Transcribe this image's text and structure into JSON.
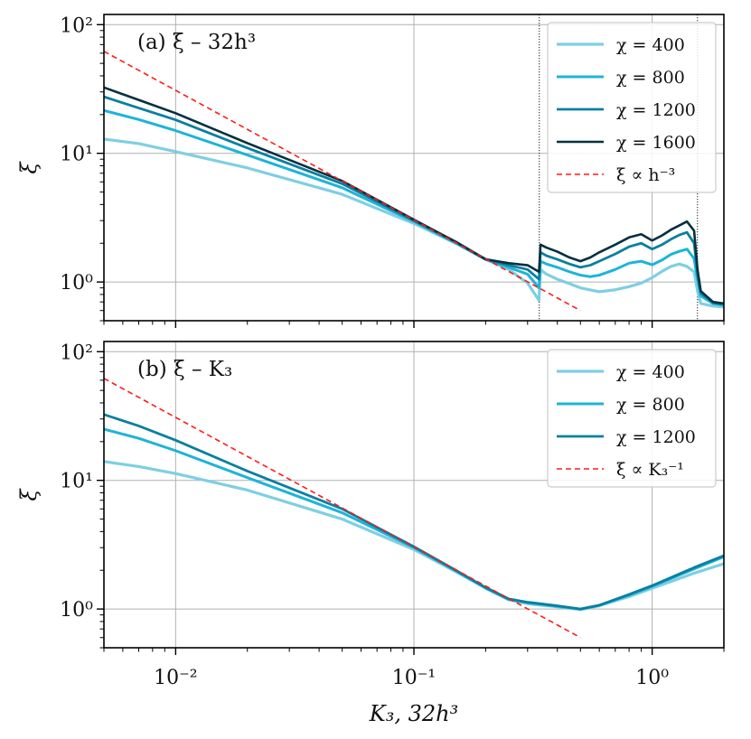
{
  "chart_data": [
    {
      "type": "line",
      "title": "(a) ξ – 32h³",
      "ylabel": "ξ",
      "xscale": "log",
      "yscale": "log",
      "xlim": [
        0.005,
        2.0
      ],
      "ylim": [
        0.5,
        120
      ],
      "grid": true,
      "legend": "top-right",
      "yticks": [
        {
          "value": 1,
          "label": "10⁰"
        },
        {
          "value": 10,
          "label": "10¹"
        },
        {
          "value": 100,
          "label": "10²"
        }
      ],
      "vlines": [
        0.336,
        1.55
      ],
      "series": [
        {
          "name": "χ = 400",
          "color": "#7ecfe3",
          "width": 3.2,
          "x": [
            0.005,
            0.007,
            0.01,
            0.02,
            0.05,
            0.1,
            0.15,
            0.2,
            0.25,
            0.3,
            0.335,
            0.34,
            0.36,
            0.4,
            0.45,
            0.5,
            0.6,
            0.7,
            0.8,
            0.9,
            1.0,
            1.1,
            1.2,
            1.3,
            1.4,
            1.5,
            1.55,
            1.6,
            1.8,
            2.0
          ],
          "y": [
            12.9,
            11.9,
            10.3,
            7.7,
            4.8,
            2.85,
            2.0,
            1.5,
            1.25,
            0.98,
            0.72,
            1.25,
            1.15,
            1.05,
            0.97,
            0.9,
            0.84,
            0.87,
            0.92,
            0.98,
            1.08,
            1.21,
            1.32,
            1.38,
            1.32,
            1.2,
            0.85,
            0.68,
            0.65,
            0.64
          ]
        },
        {
          "name": "χ = 800",
          "color": "#1db4d8",
          "width": 3.0,
          "x": [
            0.005,
            0.007,
            0.01,
            0.02,
            0.05,
            0.1,
            0.15,
            0.2,
            0.25,
            0.3,
            0.335,
            0.34,
            0.36,
            0.4,
            0.45,
            0.5,
            0.55,
            0.6,
            0.7,
            0.8,
            0.9,
            1.0,
            1.1,
            1.2,
            1.3,
            1.4,
            1.5,
            1.55,
            1.6,
            1.8,
            2.0
          ],
          "y": [
            21.5,
            18.3,
            15.0,
            9.7,
            5.4,
            2.95,
            2.0,
            1.5,
            1.3,
            1.15,
            0.9,
            1.45,
            1.38,
            1.3,
            1.2,
            1.13,
            1.1,
            1.13,
            1.25,
            1.4,
            1.45,
            1.36,
            1.48,
            1.64,
            1.73,
            1.8,
            1.52,
            1.05,
            0.78,
            0.68,
            0.66
          ]
        },
        {
          "name": "χ = 1200",
          "color": "#0a7fa0",
          "width": 2.8,
          "x": [
            0.005,
            0.007,
            0.01,
            0.02,
            0.05,
            0.1,
            0.15,
            0.2,
            0.25,
            0.3,
            0.335,
            0.34,
            0.36,
            0.4,
            0.45,
            0.5,
            0.55,
            0.6,
            0.7,
            0.8,
            0.9,
            1.0,
            1.1,
            1.2,
            1.3,
            1.4,
            1.5,
            1.55,
            1.6,
            1.8,
            2.0
          ],
          "y": [
            27.5,
            22.5,
            18.2,
            11.0,
            5.8,
            3.0,
            2.05,
            1.5,
            1.35,
            1.25,
            1.05,
            1.7,
            1.6,
            1.5,
            1.38,
            1.3,
            1.35,
            1.45,
            1.65,
            1.88,
            2.0,
            1.8,
            1.95,
            2.15,
            2.32,
            2.43,
            2.0,
            1.15,
            0.82,
            0.69,
            0.67
          ]
        },
        {
          "name": "χ = 1600",
          "color": "#06303f",
          "width": 2.6,
          "x": [
            0.005,
            0.007,
            0.01,
            0.02,
            0.05,
            0.1,
            0.15,
            0.2,
            0.25,
            0.3,
            0.335,
            0.34,
            0.36,
            0.4,
            0.45,
            0.5,
            0.55,
            0.6,
            0.7,
            0.8,
            0.9,
            1.0,
            1.1,
            1.2,
            1.3,
            1.4,
            1.5,
            1.55,
            1.6,
            1.8,
            2.0
          ],
          "y": [
            32.5,
            26.0,
            20.5,
            12.0,
            6.1,
            3.05,
            2.05,
            1.5,
            1.4,
            1.35,
            1.2,
            1.95,
            1.85,
            1.72,
            1.55,
            1.45,
            1.55,
            1.7,
            1.95,
            2.22,
            2.35,
            2.1,
            2.3,
            2.55,
            2.75,
            2.95,
            2.5,
            1.25,
            0.85,
            0.7,
            0.68
          ]
        },
        {
          "name": "ξ ∝ h⁻³",
          "color": "#ff1a1a",
          "width": 1.6,
          "dashed": true,
          "x": [
            0.005,
            0.5
          ],
          "y": [
            62,
            0.6
          ]
        }
      ]
    },
    {
      "type": "line",
      "title": "(b) ξ – K₃",
      "xlabel": "K₃, 32h³",
      "ylabel": "ξ",
      "xscale": "log",
      "yscale": "log",
      "xlim": [
        0.005,
        2.0
      ],
      "ylim": [
        0.5,
        120
      ],
      "grid": true,
      "legend": "top-right",
      "xticks": [
        {
          "value": 0.01,
          "label": "10⁻²"
        },
        {
          "value": 0.1,
          "label": "10⁻¹"
        },
        {
          "value": 1,
          "label": "10⁰"
        }
      ],
      "yticks": [
        {
          "value": 1,
          "label": "10⁰"
        },
        {
          "value": 10,
          "label": "10¹"
        },
        {
          "value": 100,
          "label": "10²"
        }
      ],
      "series": [
        {
          "name": "χ = 400",
          "color": "#7ecfe3",
          "width": 3.2,
          "x": [
            0.005,
            0.007,
            0.01,
            0.02,
            0.05,
            0.1,
            0.15,
            0.2,
            0.25,
            0.3,
            0.4,
            0.5,
            0.6,
            0.8,
            1.0,
            1.5,
            2.0
          ],
          "y": [
            14.0,
            12.8,
            11.3,
            8.4,
            5.0,
            2.9,
            1.95,
            1.45,
            1.18,
            1.1,
            1.04,
            0.99,
            1.06,
            1.25,
            1.45,
            1.9,
            2.25
          ]
        },
        {
          "name": "χ = 800",
          "color": "#1db4d8",
          "width": 3.0,
          "x": [
            0.005,
            0.007,
            0.01,
            0.02,
            0.05,
            0.1,
            0.15,
            0.2,
            0.25,
            0.3,
            0.4,
            0.5,
            0.6,
            0.8,
            1.0,
            1.5,
            2.0
          ],
          "y": [
            25.0,
            21.2,
            17.0,
            10.5,
            5.6,
            3.0,
            1.98,
            1.46,
            1.19,
            1.12,
            1.05,
            1.0,
            1.07,
            1.28,
            1.5,
            2.05,
            2.55
          ]
        },
        {
          "name": "χ = 1200",
          "color": "#0a7fa0",
          "width": 2.8,
          "x": [
            0.005,
            0.007,
            0.01,
            0.02,
            0.05,
            0.1,
            0.15,
            0.2,
            0.25,
            0.3,
            0.4,
            0.5,
            0.6,
            0.8,
            1.0,
            1.5,
            2.0
          ],
          "y": [
            32.5,
            26.5,
            20.5,
            11.8,
            6.0,
            3.05,
            2.0,
            1.47,
            1.2,
            1.13,
            1.06,
            1.0,
            1.07,
            1.3,
            1.52,
            2.1,
            2.6
          ]
        },
        {
          "name": "ξ ∝ K₃⁻¹",
          "color": "#ff1a1a",
          "width": 1.6,
          "dashed": true,
          "x": [
            0.005,
            0.5
          ],
          "y": [
            62,
            0.6
          ]
        }
      ]
    }
  ]
}
